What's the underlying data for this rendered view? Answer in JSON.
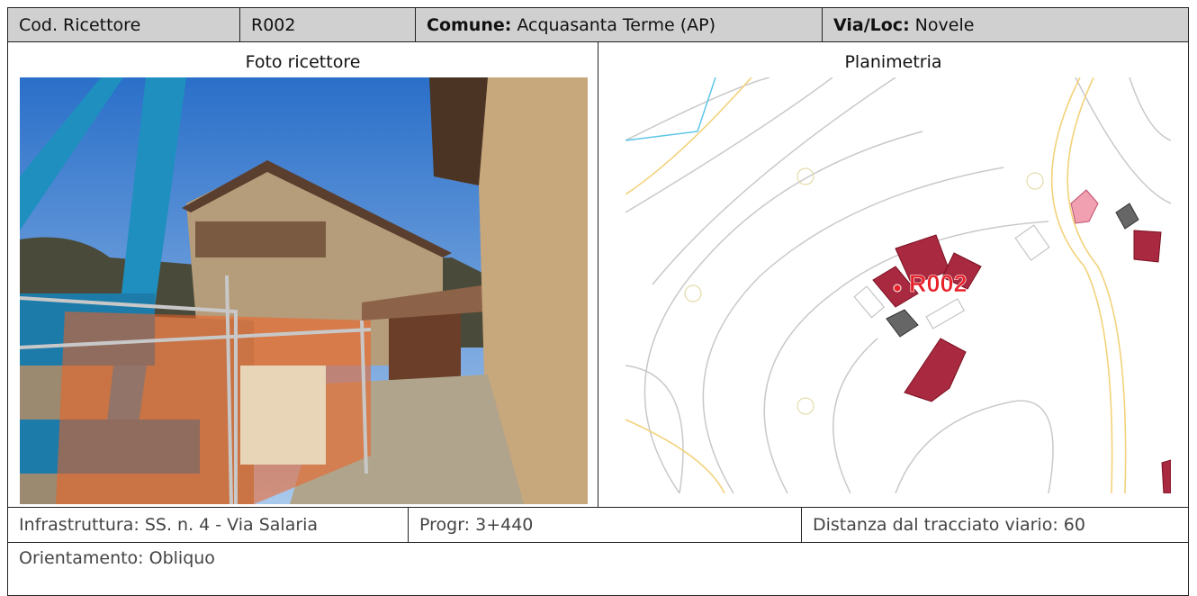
{
  "header": {
    "code_label": "Cod. Ricettore",
    "code": "R002",
    "comune_label": "Comune:",
    "comune": "Acquasanta Terme (AP)",
    "via_label": "Via/Loc:",
    "via": "Novele"
  },
  "panels": {
    "photo_title": "Foto ricettore",
    "map_title": "Planimetria",
    "map_marker": "R002"
  },
  "info": {
    "infrastruttura": "Infrastruttura: SS. n. 4 - Via Salaria",
    "progr": "Progr: 3+440",
    "distanza": "Distanza dal tracciato viario: 60",
    "orientamento": "Orientamento: Obliquo"
  }
}
